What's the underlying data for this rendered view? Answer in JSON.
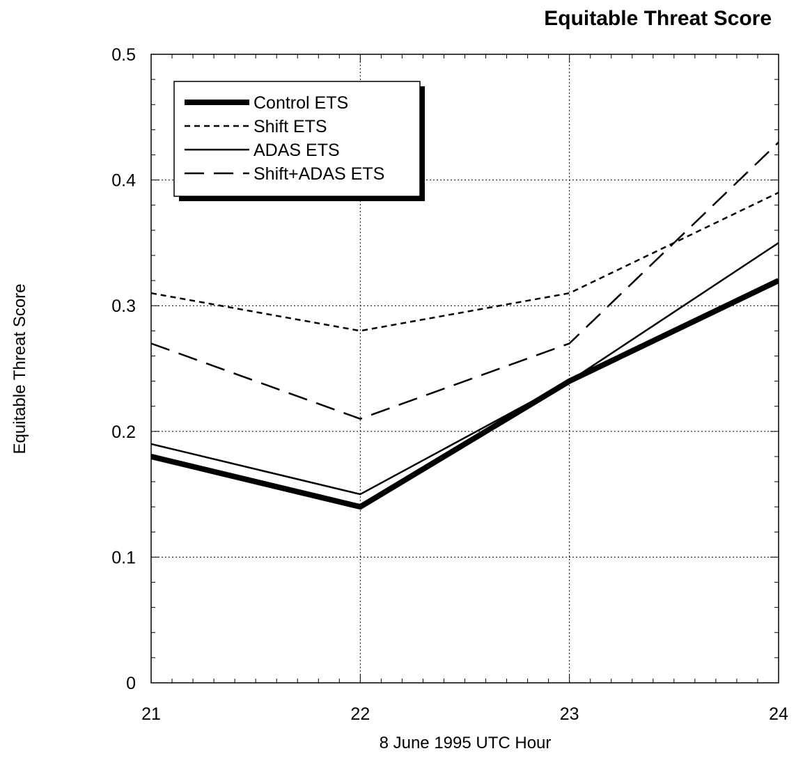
{
  "chart_data": {
    "type": "line",
    "title": "Equitable Threat Score",
    "xlabel": "8 June 1995 UTC Hour",
    "ylabel": "Equitable Threat Score",
    "x": [
      21,
      22,
      23,
      24
    ],
    "xlim": [
      21,
      24
    ],
    "ylim": [
      0,
      0.5
    ],
    "x_ticks": [
      "21",
      "22",
      "23",
      "24"
    ],
    "y_ticks": [
      "0",
      "0.1",
      "0.2",
      "0.3",
      "0.4",
      "0.5"
    ],
    "grid": true,
    "legend_position": "top-left",
    "series": [
      {
        "name": "Control ETS",
        "style": "thick-solid",
        "color": "#000000",
        "values": [
          0.18,
          0.14,
          0.24,
          0.32
        ]
      },
      {
        "name": "Shift ETS",
        "style": "short-dash",
        "color": "#000000",
        "values": [
          0.31,
          0.28,
          0.31,
          0.39
        ]
      },
      {
        "name": "ADAS ETS",
        "style": "thin-solid",
        "color": "#000000",
        "values": [
          0.19,
          0.15,
          0.24,
          0.35
        ]
      },
      {
        "name": "Shift+ADAS ETS",
        "style": "long-dash",
        "color": "#000000",
        "values": [
          0.27,
          0.21,
          0.27,
          0.43
        ]
      }
    ]
  }
}
